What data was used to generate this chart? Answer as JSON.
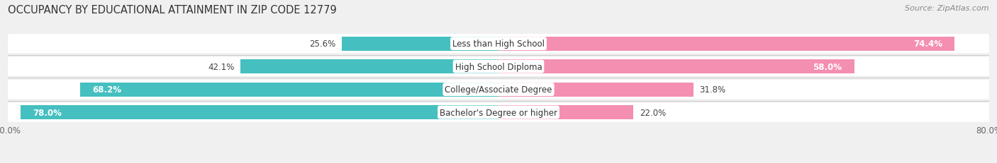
{
  "title": "OCCUPANCY BY EDUCATIONAL ATTAINMENT IN ZIP CODE 12779",
  "source": "Source: ZipAtlas.com",
  "categories": [
    "Less than High School",
    "High School Diploma",
    "College/Associate Degree",
    "Bachelor's Degree or higher"
  ],
  "owner_values": [
    25.6,
    42.1,
    68.2,
    78.0
  ],
  "renter_values": [
    74.4,
    58.0,
    31.8,
    22.0
  ],
  "owner_color": "#45BFBF",
  "renter_color": "#F48FB1",
  "xlim": [
    -80,
    80
  ],
  "bar_height": 0.62,
  "background_color": "#f0f0f0",
  "bar_bg_color": "#ffffff",
  "title_fontsize": 10.5,
  "source_fontsize": 8,
  "label_fontsize": 8.5,
  "pct_fontsize": 8.5
}
